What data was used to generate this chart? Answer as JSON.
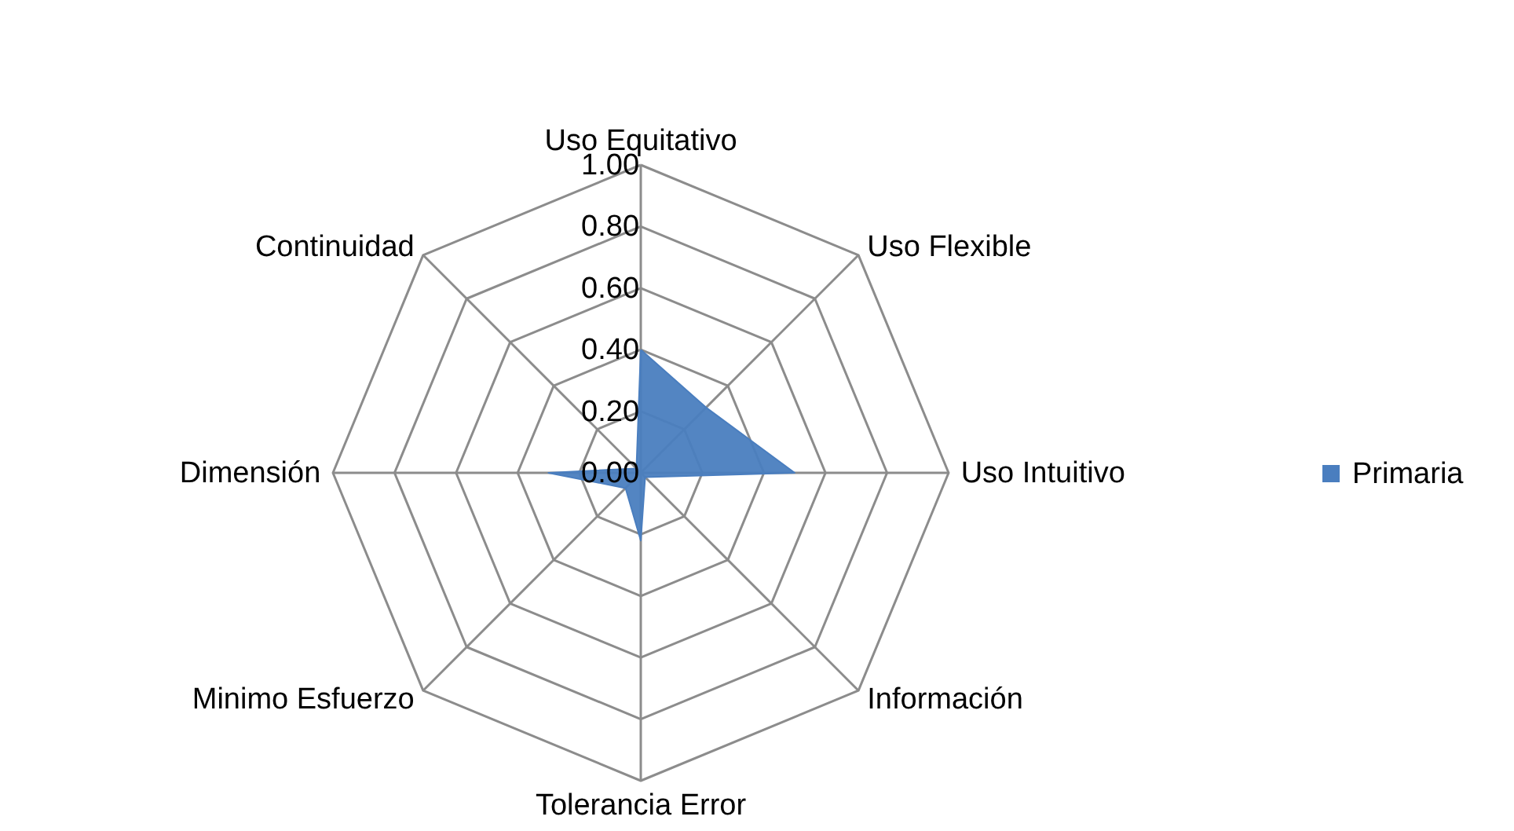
{
  "chart_data": {
    "type": "radar",
    "categories": [
      "Uso Equitativo",
      "Uso Flexible",
      "Uso Intuitivo",
      "Información",
      "Tolerancia Error",
      "Minimo Esfuerzo",
      "Dimensión",
      "Continuidad"
    ],
    "series": [
      {
        "name": "Primaria",
        "color": "#4a7ebf",
        "values": [
          0.4,
          0.3,
          0.5,
          0.02,
          0.22,
          0.07,
          0.3,
          0.02
        ]
      }
    ],
    "ylim": [
      0,
      1
    ],
    "yticks": [
      {
        "value": 0,
        "label": "0.00"
      },
      {
        "value": 0.2,
        "label": "0.20"
      },
      {
        "value": 0.4,
        "label": "0.40"
      },
      {
        "value": 0.6,
        "label": "0.60"
      },
      {
        "value": 0.8,
        "label": "0.80"
      },
      {
        "value": 1,
        "label": "1.00"
      }
    ],
    "grid": true,
    "legend": "right"
  }
}
